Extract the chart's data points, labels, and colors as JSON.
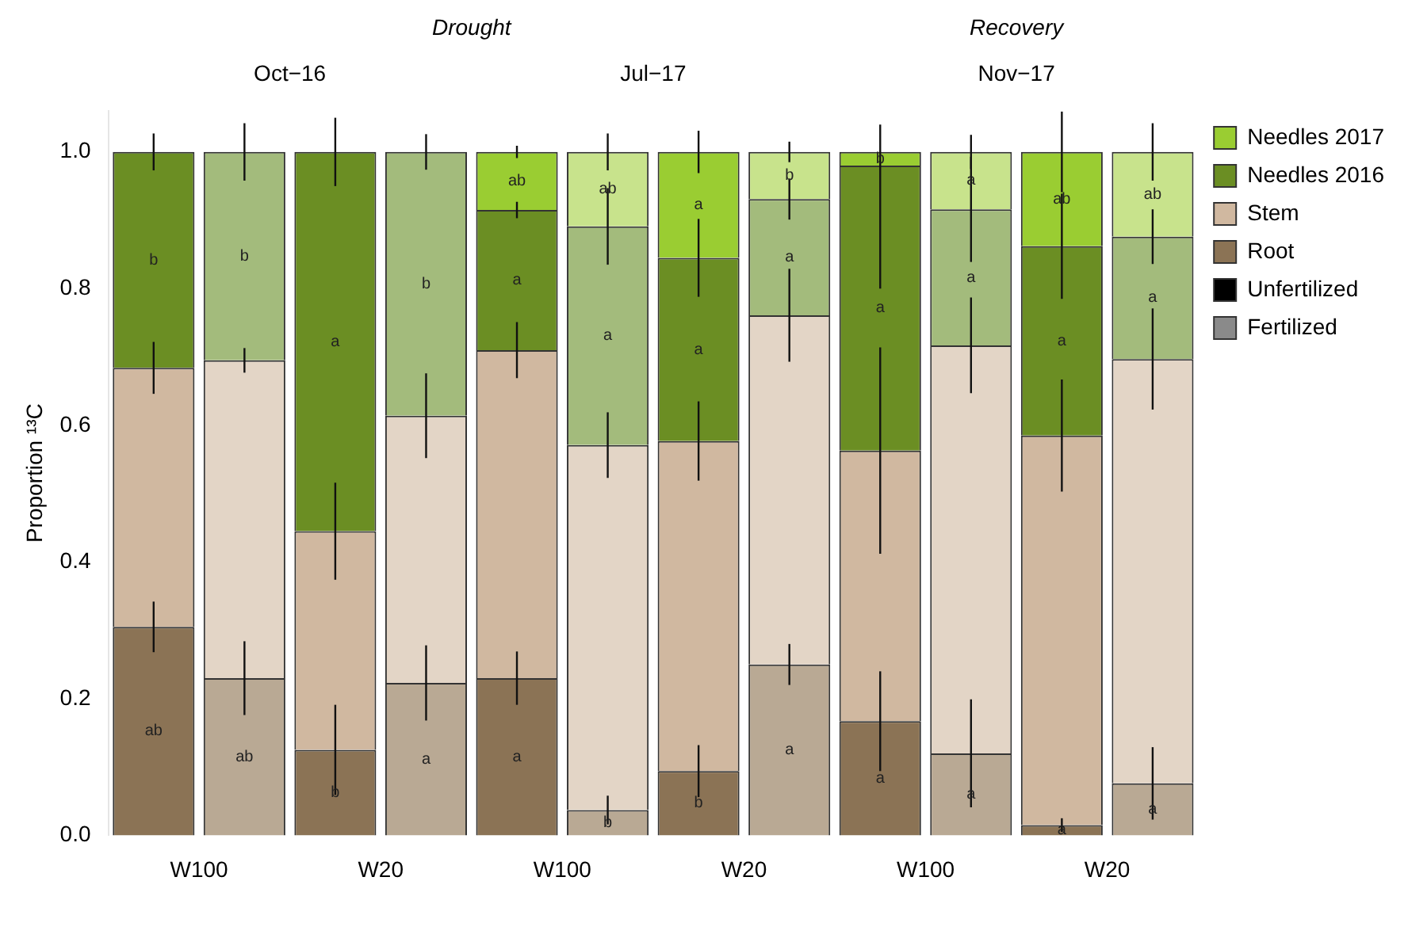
{
  "chart_data": {
    "type": "bar",
    "stacked": true,
    "ylabel": "Proportion ¹³C",
    "categories": [
      "W100",
      null,
      "W20",
      null,
      "W100",
      null,
      "W20",
      null,
      "W100",
      null,
      "W20",
      null
    ],
    "ylim": [
      0,
      1.06
    ],
    "yticks": [
      {
        "value": 0,
        "label": "0.0"
      },
      0.2,
      0.4,
      0.6,
      0.8,
      {
        "value": 1,
        "label": "1.0"
      }
    ],
    "grid": false,
    "legend": "top right",
    "annotations": [
      "Drought",
      "Recovery",
      "Oct−16",
      "Jul−17",
      "Nov−17"
    ],
    "series": [
      {
        "name": "Fertilized",
        "color": "#8a8a8a",
        "values": [
          null,
          null,
          null,
          null,
          null,
          null,
          null,
          null,
          null,
          null,
          null,
          null
        ]
      },
      {
        "name": "Unfertilized",
        "color": "#000000",
        "values": [
          null,
          null,
          null,
          null,
          null,
          null,
          null,
          null,
          null,
          null,
          null,
          null
        ]
      },
      {
        "name": "Root",
        "color": "#8b7355",
        "colors": [
          "#8b7355",
          "#b9a994",
          "#8b7355",
          "#b9a994",
          "#8b7355",
          "#b9a994",
          "#8b7355",
          "#b9a994",
          "#8b7355",
          "#b9a994",
          "#8b7355",
          "#b9a994"
        ],
        "values": [
          0.305,
          0.23,
          0.125,
          0.223,
          0.23,
          0.037,
          0.094,
          0.25,
          0.167,
          0.12,
          0.015,
          0.076
        ],
        "errors": [
          0.037,
          0.054,
          0.066,
          0.055,
          0.039,
          0.021,
          0.038,
          0.03,
          0.073,
          0.079,
          0.01,
          0.053
        ],
        "value_labels": [
          "ab",
          "ab",
          "b",
          "a",
          "a",
          "b",
          "b",
          "a",
          "a",
          "a",
          "a",
          "a"
        ]
      },
      {
        "name": "Stem",
        "color": "#d0b8a0",
        "colors": [
          "#d0b8a0",
          "#e3d5c6",
          "#d0b8a0",
          "#e3d5c6",
          "#d0b8a0",
          "#e3d5c6",
          "#d0b8a0",
          "#e3d5c6",
          "#d0b8a0",
          "#e3d5c6",
          "#d0b8a0",
          "#e3d5c6"
        ],
        "values": [
          0.379,
          0.465,
          0.32,
          0.391,
          0.48,
          0.534,
          0.483,
          0.511,
          0.396,
          0.597,
          0.57,
          0.621
        ],
        "errors": [
          0.038,
          0.018,
          0.071,
          0.062,
          0.041,
          0.048,
          0.058,
          0.068,
          0.151,
          0.07,
          0.082,
          0.074
        ]
      },
      {
        "name": "Needles 2016",
        "color": "#6b8e23",
        "colors": [
          "#6b8e23",
          "#a3bb7c",
          "#6b8e23",
          "#a3bb7c",
          "#6b8e23",
          "#a3bb7c",
          "#6b8e23",
          "#a3bb7c",
          "#6b8e23",
          "#a3bb7c",
          "#6b8e23",
          "#a3bb7c"
        ],
        "values": [
          0.316,
          0.305,
          0.555,
          0.386,
          0.205,
          0.32,
          0.268,
          0.17,
          0.417,
          0.199,
          0.277,
          0.179
        ],
        "errors": [
          0.027,
          0.042,
          0.05,
          0.026,
          0.012,
          0.056,
          0.057,
          0.03,
          [
            0.8,
            1.04
          ],
          0.077,
          0.077,
          0.04
        ],
        "value_labels": [
          "b",
          "b",
          "a",
          "b",
          "a",
          "a",
          "a",
          "a",
          "a",
          "a",
          "a",
          "a"
        ]
      },
      {
        "name": "Needles 2017",
        "color": "#9acd32",
        "colors": [
          "#9acd32",
          "#c8e38c",
          "#9acd32",
          "#c8e38c",
          "#9acd32",
          "#c8e38c",
          "#9acd32",
          "#c8e38c",
          "#9acd32",
          "#c8e38c",
          "#9acd32",
          "#c8e38c"
        ],
        "values": [
          null,
          null,
          null,
          null,
          0.085,
          0.109,
          0.155,
          0.069,
          0.02,
          0.084,
          0.138,
          0.124
        ],
        "errors": [
          null,
          null,
          null,
          null,
          0.009,
          0.027,
          0.031,
          0.015,
          null,
          0.025,
          0.059,
          0.042
        ],
        "value_labels": [
          null,
          null,
          null,
          null,
          "ab",
          "ab",
          "a",
          "b",
          "b",
          "a",
          "ab",
          "ab"
        ]
      }
    ]
  }
}
